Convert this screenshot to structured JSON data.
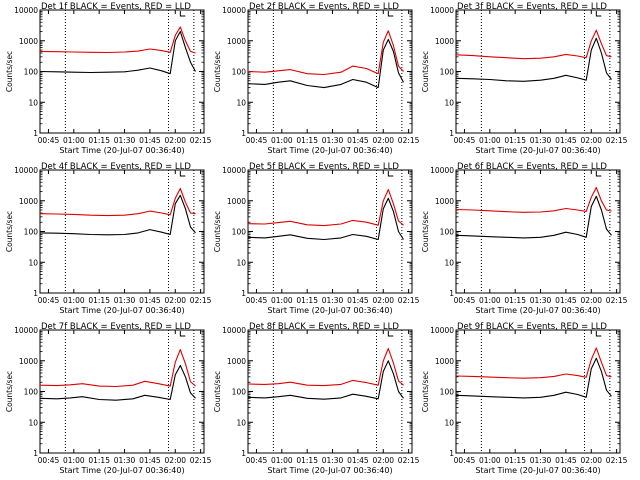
{
  "figure": {
    "colors": {
      "events": "#000000",
      "lld": "#e00000",
      "axis": "#000000"
    }
  },
  "chart_data": [
    {
      "type": "line",
      "title": "Det 1f BLACK = Events, RED = LLD",
      "xlabel": "Start Time (20-Jul-07 00:36:40)",
      "ylabel": "Counts/sec",
      "y_scale": "log",
      "xlim": [
        "00:40",
        "02:17"
      ],
      "ylim": [
        1,
        10000
      ],
      "x_ticks": [
        "00:45",
        "01:00",
        "01:15",
        "01:30",
        "01:45",
        "02:00",
        "02:15"
      ],
      "y_ticks": [
        "1",
        "10",
        "100",
        "1000",
        "10000"
      ],
      "vertical_markers": [
        "00:55",
        "01:56",
        "02:11"
      ],
      "top_markers": [
        "02:03"
      ],
      "x": [
        "00:40",
        "00:50",
        "01:00",
        "01:10",
        "01:20",
        "01:30",
        "01:38",
        "01:45",
        "01:52",
        "01:57",
        "02:00",
        "02:03",
        "02:06",
        "02:09",
        "02:12"
      ],
      "series": [
        {
          "values": [
            100,
            98,
            95,
            93,
            95,
            98,
            110,
            130,
            105,
            85,
            1000,
            2000,
            600,
            200,
            100
          ]
        },
        {
          "values": [
            450,
            440,
            430,
            420,
            415,
            430,
            460,
            540,
            480,
            420,
            1500,
            2800,
            1000,
            450,
            400
          ]
        }
      ]
    },
    {
      "type": "line",
      "title": "Det 2f BLACK = Events, RED = LLD",
      "xlabel": "Start Time (20-Jul-07 00:36:40)",
      "ylabel": "Counts/sec",
      "y_scale": "log",
      "xlim": [
        "00:40",
        "02:17"
      ],
      "ylim": [
        1,
        10000
      ],
      "x_ticks": [
        "00:45",
        "01:00",
        "01:15",
        "01:30",
        "01:45",
        "02:00",
        "02:15"
      ],
      "y_ticks": [
        "1",
        "10",
        "100",
        "1000",
        "10000"
      ],
      "vertical_markers": [
        "00:55",
        "01:56",
        "02:11"
      ],
      "top_markers": [
        "02:03"
      ],
      "x": [
        "00:40",
        "00:50",
        "00:58",
        "01:05",
        "01:15",
        "01:25",
        "01:35",
        "01:42",
        "01:50",
        "01:57",
        "02:00",
        "02:03",
        "02:06",
        "02:09",
        "02:12"
      ],
      "series": [
        {
          "values": [
            40,
            38,
            45,
            50,
            35,
            30,
            38,
            55,
            45,
            30,
            500,
            1100,
            450,
            90,
            45
          ]
        },
        {
          "values": [
            100,
            95,
            105,
            115,
            85,
            80,
            95,
            150,
            125,
            85,
            900,
            2100,
            700,
            150,
            100
          ]
        }
      ]
    },
    {
      "type": "line",
      "title": "Det 3f BLACK = Events, RED = LLD",
      "xlabel": "Start Time (20-Jul-07 00:36:40)",
      "ylabel": "Counts/sec",
      "y_scale": "log",
      "xlim": [
        "00:40",
        "02:17"
      ],
      "ylim": [
        1,
        10000
      ],
      "x_ticks": [
        "00:45",
        "01:00",
        "01:15",
        "01:30",
        "01:45",
        "02:00",
        "02:15"
      ],
      "y_ticks": [
        "1",
        "10",
        "100",
        "1000",
        "10000"
      ],
      "vertical_markers": [
        "00:55",
        "01:56",
        "02:11"
      ],
      "top_markers": [
        "02:03"
      ],
      "x": [
        "00:40",
        "00:50",
        "01:00",
        "01:10",
        "01:20",
        "01:30",
        "01:38",
        "01:45",
        "01:52",
        "01:57",
        "02:00",
        "02:03",
        "02:06",
        "02:09",
        "02:12"
      ],
      "series": [
        {
          "values": [
            60,
            58,
            55,
            50,
            48,
            52,
            60,
            75,
            62,
            52,
            500,
            1200,
            400,
            90,
            55
          ]
        },
        {
          "values": [
            350,
            330,
            300,
            280,
            260,
            270,
            300,
            360,
            320,
            280,
            1000,
            2200,
            800,
            330,
            300
          ]
        }
      ]
    },
    {
      "type": "line",
      "title": "Det 4f BLACK = Events, RED = LLD",
      "xlabel": "Start Time (20-Jul-07 00:36:40)",
      "ylabel": "Counts/sec",
      "y_scale": "log",
      "xlim": [
        "00:40",
        "02:17"
      ],
      "ylim": [
        1,
        10000
      ],
      "x_ticks": [
        "00:45",
        "01:00",
        "01:15",
        "01:30",
        "01:45",
        "02:00",
        "02:15"
      ],
      "y_ticks": [
        "1",
        "10",
        "100",
        "1000",
        "10000"
      ],
      "vertical_markers": [
        "00:55",
        "01:56",
        "02:11"
      ],
      "top_markers": [
        "02:03"
      ],
      "x": [
        "00:40",
        "00:50",
        "01:00",
        "01:10",
        "01:20",
        "01:30",
        "01:38",
        "01:45",
        "01:52",
        "01:57",
        "02:00",
        "02:03",
        "02:06",
        "02:09",
        "02:12"
      ],
      "series": [
        {
          "values": [
            90,
            88,
            85,
            80,
            78,
            80,
            90,
            115,
            95,
            80,
            800,
            1500,
            550,
            140,
            90
          ]
        },
        {
          "values": [
            380,
            370,
            360,
            340,
            330,
            340,
            380,
            460,
            400,
            350,
            1200,
            2500,
            900,
            400,
            380
          ]
        }
      ]
    },
    {
      "type": "line",
      "title": "Det 5f BLACK = Events, RED = LLD",
      "xlabel": "Start Time (20-Jul-07 00:36:40)",
      "ylabel": "Counts/sec",
      "y_scale": "log",
      "xlim": [
        "00:40",
        "02:17"
      ],
      "ylim": [
        1,
        10000
      ],
      "x_ticks": [
        "00:45",
        "01:00",
        "01:15",
        "01:30",
        "01:45",
        "02:00",
        "02:15"
      ],
      "y_ticks": [
        "1",
        "10",
        "100",
        "1000",
        "10000"
      ],
      "vertical_markers": [
        "00:55",
        "01:56",
        "02:11"
      ],
      "top_markers": [
        "02:03"
      ],
      "x": [
        "00:40",
        "00:50",
        "00:58",
        "01:05",
        "01:15",
        "01:25",
        "01:35",
        "01:42",
        "01:50",
        "01:57",
        "02:00",
        "02:03",
        "02:06",
        "02:09",
        "02:12"
      ],
      "series": [
        {
          "values": [
            65,
            62,
            70,
            78,
            60,
            55,
            62,
            80,
            70,
            55,
            550,
            1200,
            450,
            100,
            55
          ]
        },
        {
          "values": [
            180,
            175,
            195,
            215,
            165,
            155,
            175,
            230,
            200,
            160,
            1000,
            2300,
            800,
            220,
            160
          ]
        }
      ]
    },
    {
      "type": "line",
      "title": "Det 6f BLACK = Events, RED = LLD",
      "xlabel": "Start Time (20-Jul-07 00:36:40)",
      "ylabel": "Counts/sec",
      "y_scale": "log",
      "xlim": [
        "00:40",
        "02:17"
      ],
      "ylim": [
        1,
        10000
      ],
      "x_ticks": [
        "00:45",
        "01:00",
        "01:15",
        "01:30",
        "01:45",
        "02:00",
        "02:15"
      ],
      "y_ticks": [
        "1",
        "10",
        "100",
        "1000",
        "10000"
      ],
      "vertical_markers": [
        "00:55",
        "01:56",
        "02:11"
      ],
      "top_markers": [
        "02:03"
      ],
      "x": [
        "00:40",
        "00:50",
        "01:00",
        "01:10",
        "01:20",
        "01:30",
        "01:38",
        "01:45",
        "01:52",
        "01:57",
        "02:00",
        "02:03",
        "02:06",
        "02:09",
        "02:12"
      ],
      "series": [
        {
          "values": [
            75,
            72,
            68,
            65,
            62,
            65,
            75,
            95,
            80,
            65,
            650,
            1400,
            500,
            120,
            75
          ]
        },
        {
          "values": [
            520,
            500,
            470,
            440,
            420,
            430,
            470,
            560,
            500,
            450,
            1300,
            2700,
            1000,
            500,
            460
          ]
        }
      ]
    },
    {
      "type": "line",
      "title": "Det 7f BLACK = Events, RED = LLD",
      "xlabel": "Start Time (20-Jul-07 00:36:40)",
      "ylabel": "Counts/sec",
      "y_scale": "log",
      "xlim": [
        "00:40",
        "02:17"
      ],
      "ylim": [
        1,
        10000
      ],
      "x_ticks": [
        "00:45",
        "01:00",
        "01:15",
        "01:30",
        "01:45",
        "02:00",
        "02:15"
      ],
      "y_ticks": [
        "1",
        "10",
        "100",
        "1000",
        "10000"
      ],
      "vertical_markers": [
        "00:55",
        "01:56",
        "02:11"
      ],
      "top_markers": [
        "02:03"
      ],
      "x": [
        "00:40",
        "00:50",
        "00:58",
        "01:05",
        "01:15",
        "01:25",
        "01:35",
        "01:42",
        "01:50",
        "01:57",
        "02:00",
        "02:03",
        "02:06",
        "02:09",
        "02:12"
      ],
      "series": [
        {
          "values": [
            60,
            58,
            62,
            68,
            55,
            52,
            58,
            75,
            65,
            55,
            350,
            700,
            300,
            90,
            60
          ]
        },
        {
          "values": [
            160,
            155,
            165,
            180,
            150,
            145,
            160,
            215,
            180,
            150,
            900,
            2300,
            800,
            210,
            150
          ]
        }
      ]
    },
    {
      "type": "line",
      "title": "Det 8f BLACK = Events, RED = LLD",
      "xlabel": "Start Time (20-Jul-07 00:36:40)",
      "ylabel": "Counts/sec",
      "y_scale": "log",
      "xlim": [
        "00:40",
        "02:17"
      ],
      "ylim": [
        1,
        10000
      ],
      "x_ticks": [
        "00:45",
        "01:00",
        "01:15",
        "01:30",
        "01:45",
        "02:00",
        "02:15"
      ],
      "y_ticks": [
        "1",
        "10",
        "100",
        "1000",
        "10000"
      ],
      "vertical_markers": [
        "00:55",
        "01:56",
        "02:11"
      ],
      "top_markers": [
        "02:03"
      ],
      "x": [
        "00:40",
        "00:50",
        "00:58",
        "01:05",
        "01:15",
        "01:25",
        "01:35",
        "01:42",
        "01:50",
        "01:57",
        "02:00",
        "02:03",
        "02:06",
        "02:09",
        "02:12"
      ],
      "series": [
        {
          "values": [
            65,
            62,
            68,
            75,
            60,
            56,
            62,
            82,
            70,
            58,
            450,
            1000,
            380,
            100,
            60
          ]
        },
        {
          "values": [
            175,
            170,
            180,
            200,
            160,
            155,
            170,
            230,
            195,
            160,
            1000,
            2500,
            850,
            220,
            160
          ]
        }
      ]
    },
    {
      "type": "line",
      "title": "Det 9f BLACK = Events, RED = LLD",
      "xlabel": "Start Time (20-Jul-07 00:36:40)",
      "ylabel": "Counts/sec",
      "y_scale": "log",
      "xlim": [
        "00:40",
        "02:17"
      ],
      "ylim": [
        1,
        10000
      ],
      "x_ticks": [
        "00:45",
        "01:00",
        "01:15",
        "01:30",
        "01:45",
        "02:00",
        "02:15"
      ],
      "y_ticks": [
        "1",
        "10",
        "100",
        "1000",
        "10000"
      ],
      "vertical_markers": [
        "00:55",
        "01:56",
        "02:11"
      ],
      "top_markers": [
        "02:03"
      ],
      "x": [
        "00:40",
        "00:50",
        "01:00",
        "01:10",
        "01:20",
        "01:30",
        "01:38",
        "01:45",
        "01:52",
        "01:57",
        "02:00",
        "02:03",
        "02:06",
        "02:09",
        "02:12"
      ],
      "series": [
        {
          "values": [
            75,
            72,
            68,
            65,
            62,
            65,
            75,
            95,
            80,
            65,
            550,
            1200,
            450,
            110,
            70
          ]
        },
        {
          "values": [
            320,
            310,
            295,
            280,
            270,
            280,
            310,
            370,
            330,
            290,
            1100,
            2600,
            900,
            330,
            300
          ]
        }
      ]
    }
  ]
}
